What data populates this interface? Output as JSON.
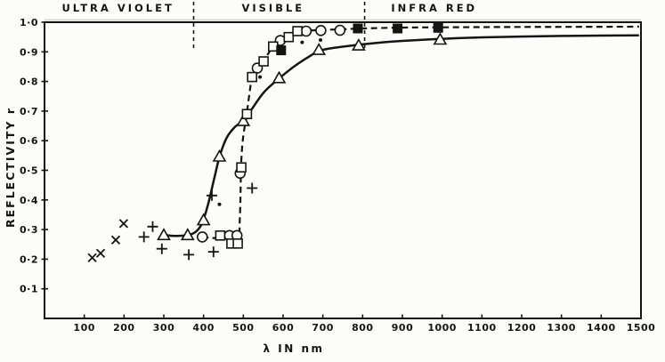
{
  "chart_data": {
    "type": "scatter",
    "title": "",
    "xlabel": "λ IN nm",
    "ylabel": "REFLECTIVITY r",
    "xlim": [
      0,
      1500
    ],
    "ylim": [
      0,
      1.0
    ],
    "grid": false,
    "legend": "none",
    "x_ticks": [
      100,
      200,
      300,
      400,
      500,
      600,
      700,
      800,
      900,
      1000,
      1100,
      1200,
      1300,
      1400,
      1500
    ],
    "x_tick_labels": [
      "100",
      "200",
      "300",
      "400",
      "500",
      "600",
      "700",
      "800",
      "900",
      "1000",
      "1100",
      "1200",
      "1300",
      "1400",
      "1500"
    ],
    "y_ticks": [
      0.1,
      0.2,
      0.3,
      0.4,
      0.5,
      0.6,
      0.7,
      0.8,
      0.9,
      1.0
    ],
    "y_tick_labels": [
      "0·1",
      "0·2",
      "0·3",
      "0·4",
      "0·5",
      "0·6",
      "0·7",
      "0·8",
      "0·9",
      "1·0"
    ],
    "regions": [
      {
        "label": "ULTRA VIOLET",
        "center_nm": 185
      },
      {
        "label": "VISIBLE",
        "center_nm": 575
      },
      {
        "label": "INFRA RED",
        "center_nm": 980
      }
    ],
    "region_boundaries_nm": [
      375,
      805
    ],
    "curves": [
      {
        "name": "solid-reflectivity-curve",
        "style": "solid",
        "points": [
          [
            293,
            0.284
          ],
          [
            320,
            0.279
          ],
          [
            360,
            0.281
          ],
          [
            380,
            0.292
          ],
          [
            395,
            0.318
          ],
          [
            410,
            0.378
          ],
          [
            425,
            0.462
          ],
          [
            440,
            0.545
          ],
          [
            458,
            0.61
          ],
          [
            480,
            0.648
          ],
          [
            500,
            0.667
          ],
          [
            522,
            0.708
          ],
          [
            552,
            0.764
          ],
          [
            590,
            0.81
          ],
          [
            630,
            0.853
          ],
          [
            670,
            0.888
          ],
          [
            690,
            0.903
          ],
          [
            725,
            0.913
          ],
          [
            790,
            0.924
          ],
          [
            850,
            0.932
          ],
          [
            900,
            0.937
          ],
          [
            1000,
            0.944
          ],
          [
            1100,
            0.949
          ],
          [
            1250,
            0.953
          ],
          [
            1400,
            0.955
          ],
          [
            1495,
            0.956
          ]
        ]
      },
      {
        "name": "dashed-reflectivity-curve",
        "style": "dashed",
        "points": [
          [
            397,
            0.275
          ],
          [
            420,
            0.272
          ],
          [
            450,
            0.27
          ],
          [
            470,
            0.27
          ],
          [
            488,
            0.273
          ],
          [
            491,
            0.33
          ],
          [
            493,
            0.42
          ],
          [
            494,
            0.51
          ],
          [
            497,
            0.578
          ],
          [
            501,
            0.627
          ],
          [
            507,
            0.675
          ],
          [
            515,
            0.755
          ],
          [
            522,
            0.812
          ],
          [
            535,
            0.845
          ],
          [
            551,
            0.868
          ],
          [
            563,
            0.895
          ],
          [
            575,
            0.918
          ],
          [
            593,
            0.938
          ],
          [
            614,
            0.95
          ],
          [
            630,
            0.962
          ],
          [
            650,
            0.97
          ],
          [
            680,
            0.973
          ],
          [
            720,
            0.975
          ],
          [
            760,
            0.977
          ],
          [
            800,
            0.979
          ],
          [
            900,
            0.982
          ],
          [
            1000,
            0.983
          ],
          [
            1200,
            0.984
          ],
          [
            1495,
            0.985
          ]
        ]
      }
    ],
    "series": [
      {
        "name": "crosses",
        "marker": "x",
        "points": [
          [
            120,
            0.205
          ],
          [
            141,
            0.22
          ],
          [
            179,
            0.265
          ],
          [
            199,
            0.32
          ]
        ]
      },
      {
        "name": "plus-signs",
        "marker": "plus",
        "points": [
          [
            250,
            0.275
          ],
          [
            272,
            0.31
          ],
          [
            295,
            0.235
          ],
          [
            363,
            0.215
          ],
          [
            421,
            0.415
          ],
          [
            425,
            0.225
          ],
          [
            522,
            0.44
          ]
        ]
      },
      {
        "name": "open-triangles",
        "marker": "triangle",
        "points": [
          [
            300,
            0.28
          ],
          [
            360,
            0.28
          ],
          [
            400,
            0.33
          ],
          [
            440,
            0.545
          ],
          [
            500,
            0.665
          ],
          [
            590,
            0.81
          ],
          [
            690,
            0.905
          ],
          [
            790,
            0.92
          ],
          [
            995,
            0.94
          ]
        ]
      },
      {
        "name": "open-circles",
        "marker": "circle",
        "points": [
          [
            397,
            0.275
          ],
          [
            465,
            0.28
          ],
          [
            484,
            0.28
          ],
          [
            492,
            0.49
          ],
          [
            535,
            0.845
          ],
          [
            593,
            0.938
          ],
          [
            658,
            0.97
          ],
          [
            695,
            0.972
          ],
          [
            743,
            0.973
          ]
        ]
      },
      {
        "name": "open-squares",
        "marker": "square",
        "points": [
          [
            442,
            0.28
          ],
          [
            470,
            0.253
          ],
          [
            486,
            0.253
          ],
          [
            495,
            0.51
          ],
          [
            509,
            0.69
          ],
          [
            522,
            0.815
          ],
          [
            551,
            0.868
          ],
          [
            575,
            0.918
          ],
          [
            614,
            0.95
          ],
          [
            636,
            0.97
          ]
        ]
      },
      {
        "name": "filled-squares",
        "marker": "filled-square",
        "points": [
          [
            595,
            0.905
          ],
          [
            788,
            0.979
          ],
          [
            888,
            0.979
          ],
          [
            990,
            0.981
          ]
        ]
      },
      {
        "name": "small-dots",
        "marker": "dot",
        "points": [
          [
            440,
            0.385
          ],
          [
            542,
            0.815
          ],
          [
            648,
            0.932
          ],
          [
            694,
            0.94
          ]
        ]
      }
    ],
    "ink_color": "#141414",
    "paper_color": "#fcfcfa"
  }
}
